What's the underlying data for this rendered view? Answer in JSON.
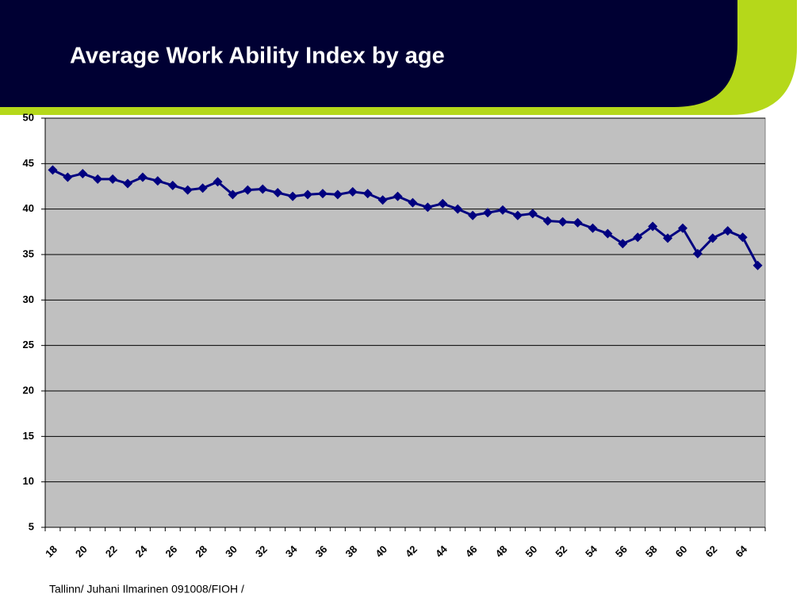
{
  "slide": {
    "title": "Average Work Ability Index by  age",
    "footer": "Tallinn/ Juhani Ilmarinen 091008/FIOH /"
  },
  "chart_data": {
    "type": "line",
    "categories": [
      "18",
      null,
      "20",
      null,
      "22",
      null,
      "24",
      null,
      "26",
      null,
      "28",
      null,
      "30",
      null,
      "32",
      null,
      "34",
      null,
      "36",
      null,
      "38",
      null,
      "40",
      null,
      "42",
      null,
      "44",
      null,
      "46",
      null,
      "48",
      null,
      "50",
      null,
      "52",
      null,
      "54",
      null,
      "56",
      null,
      "58",
      null,
      "60",
      null,
      "62",
      null,
      "64",
      null
    ],
    "series": [
      {
        "name": "Work Ability Index",
        "color": "#000080",
        "values": [
          44.3,
          43.5,
          43.9,
          43.3,
          43.3,
          42.8,
          43.5,
          43.1,
          42.6,
          42.1,
          42.3,
          43.0,
          41.6,
          42.1,
          42.2,
          41.8,
          41.4,
          41.6,
          41.7,
          41.6,
          41.9,
          41.7,
          41.0,
          41.4,
          40.7,
          40.2,
          40.6,
          40.0,
          39.3,
          39.6,
          39.9,
          39.3,
          39.5,
          38.7,
          38.6,
          38.5,
          37.9,
          37.3,
          36.2,
          36.9,
          38.1,
          36.8,
          37.9,
          35.1,
          36.8,
          37.6,
          36.9,
          33.8
        ]
      }
    ],
    "ylim": [
      5,
      50
    ],
    "yticks": [
      5,
      10,
      15,
      20,
      25,
      30,
      35,
      40,
      45,
      50
    ],
    "grid": true,
    "plot_background": "#c0c0c0"
  }
}
